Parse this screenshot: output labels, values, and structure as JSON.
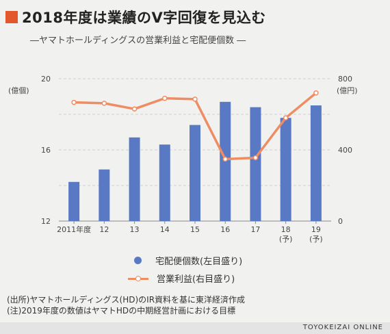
{
  "header": {
    "title": "2018年度は業績のV字回復を見込む",
    "subtitle": "―ヤマトホールディングスの営業利益と宅配便個数 ―"
  },
  "chart_data": {
    "type": "bar+line",
    "categories": [
      [
        "2011年度"
      ],
      [
        "12"
      ],
      [
        "13"
      ],
      [
        "14"
      ],
      [
        "15"
      ],
      [
        "16"
      ],
      [
        "17"
      ],
      [
        "18",
        "(予)"
      ],
      [
        "19",
        "(予)"
      ]
    ],
    "series": [
      {
        "name": "宅配便個数(左目盛り)",
        "type": "bar",
        "axis": "left",
        "values": [
          14.2,
          14.9,
          16.7,
          16.3,
          17.4,
          18.7,
          18.4,
          17.8,
          18.5
        ]
      },
      {
        "name": "営業利益(右目盛り)",
        "type": "line",
        "axis": "right",
        "values": [
          667,
          662,
          630,
          690,
          685,
          348,
          356,
          580,
          720
        ]
      }
    ],
    "left_axis": {
      "unit": "(億個)",
      "ylim": [
        12,
        20
      ],
      "ticks": [
        12,
        16,
        20
      ]
    },
    "right_axis": {
      "unit": "(億円)",
      "ylim": [
        0,
        800
      ],
      "ticks": [
        0,
        400,
        800
      ]
    },
    "grid": true,
    "legend": "bottom"
  },
  "colors": {
    "accent_square": "#e2572b",
    "bar": "#5a79c4",
    "line": "#ee8c64",
    "grid": "#cfcfcf",
    "axis_text": "#444444"
  },
  "notes": [
    "(出所)ヤマトホールディングス(HD)のIR資料を基に東洋経済作成",
    "(注)2019年度の数値はヤマトHDの中期経営計画における目標"
  ],
  "footer": {
    "brand": "TOYOKEIZAI ONLINE"
  }
}
